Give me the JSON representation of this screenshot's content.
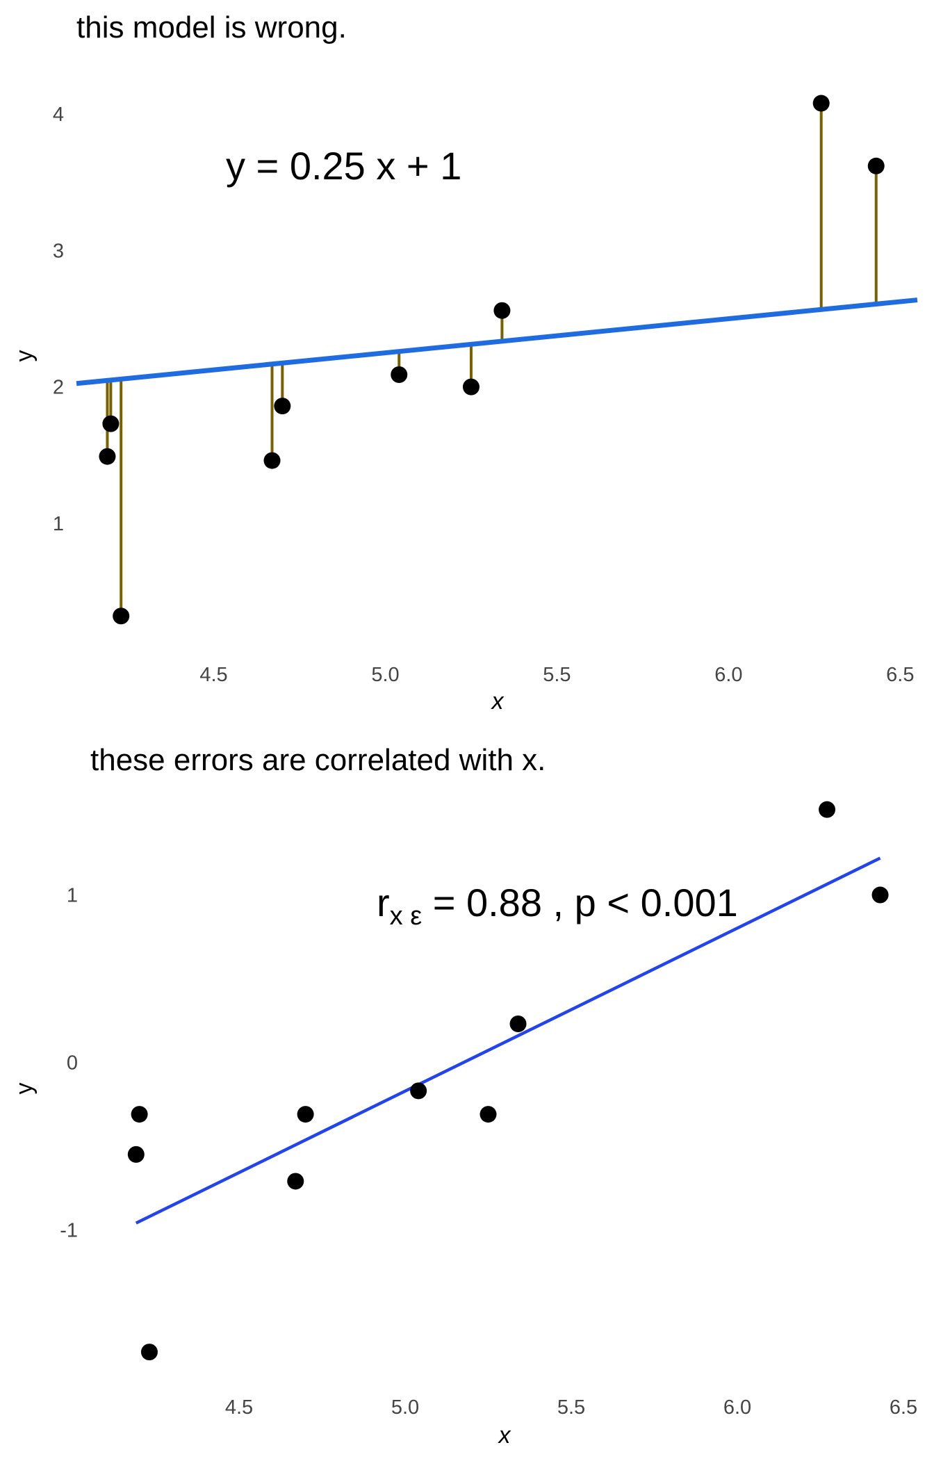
{
  "chart_data": [
    {
      "type": "scatter",
      "title": "this model is wrong.",
      "xlabel": "x",
      "ylabel": "y",
      "xlim": [
        4.1,
        6.55
      ],
      "ylim": [
        0.25,
        4.2
      ],
      "xticks": [
        "4.5",
        "5.0",
        "5.5",
        "6.0",
        "6.5"
      ],
      "yticks": [
        "1",
        "2",
        "3",
        "4"
      ],
      "annotation": "y = 0.25 x + 1",
      "fit_line": {
        "slope": 0.25,
        "intercept": 1,
        "color": "#1F6BE0"
      },
      "residual_color": "#7A6100",
      "points": [
        {
          "x": 4.19,
          "y": 1.49
        },
        {
          "x": 4.2,
          "y": 1.73
        },
        {
          "x": 4.23,
          "y": 0.32
        },
        {
          "x": 4.67,
          "y": 1.46
        },
        {
          "x": 4.7,
          "y": 1.86
        },
        {
          "x": 5.04,
          "y": 2.09
        },
        {
          "x": 5.25,
          "y": 2.0
        },
        {
          "x": 5.34,
          "y": 2.56
        },
        {
          "x": 6.27,
          "y": 4.08
        },
        {
          "x": 6.43,
          "y": 3.62
        }
      ]
    },
    {
      "type": "scatter",
      "title": "these errors are correlated with x.",
      "xlabel": "x",
      "ylabel": "y",
      "xlim": [
        4.0,
        6.5
      ],
      "ylim": [
        -1.8,
        1.6
      ],
      "xticks": [
        "4.5",
        "5.0",
        "5.5",
        "6.0",
        "6.5"
      ],
      "yticks": [
        "1",
        "0",
        "-1"
      ],
      "annotation": {
        "prefix": "r",
        "subscript": "x ε",
        "rest": " = 0.88 , p < 0.001"
      },
      "fit_line": {
        "x": [
          4.19,
          6.43
        ],
        "y": [
          -0.96,
          1.22
        ],
        "color": "#2244EE"
      },
      "points": [
        {
          "x": 4.19,
          "y": -0.55
        },
        {
          "x": 4.2,
          "y": -0.31
        },
        {
          "x": 4.23,
          "y": -1.73
        },
        {
          "x": 4.67,
          "y": -0.71
        },
        {
          "x": 4.7,
          "y": -0.31
        },
        {
          "x": 5.04,
          "y": -0.17
        },
        {
          "x": 5.25,
          "y": -0.31
        },
        {
          "x": 5.34,
          "y": 0.23
        },
        {
          "x": 6.27,
          "y": 1.51
        },
        {
          "x": 6.43,
          "y": 1.0
        }
      ]
    }
  ]
}
